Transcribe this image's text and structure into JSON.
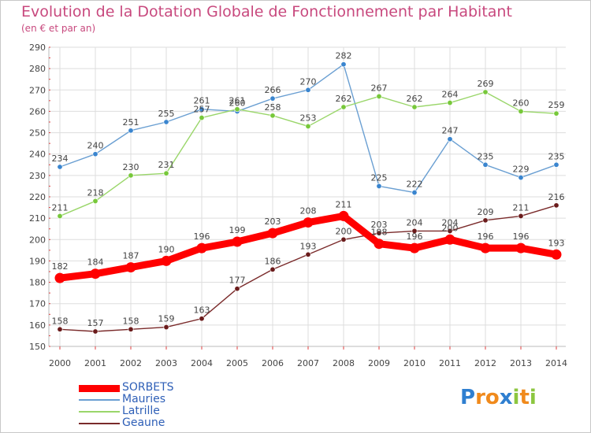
{
  "header": {
    "title": "Evolution de la Dotation Globale de Fonctionnement par Habitant",
    "subtitle": "(en € et par an)"
  },
  "colors": {
    "title": "#c8497e",
    "grid": "#dddddd",
    "axis": "#bbbbbb",
    "axis_red_ticks": "#e04040",
    "legend_text": "#2e5fb7"
  },
  "chart_data": {
    "type": "line",
    "x": [
      "2000",
      "2001",
      "2002",
      "2003",
      "2004",
      "2005",
      "2006",
      "2007",
      "2008",
      "2009",
      "2010",
      "2011",
      "2012",
      "2013",
      "2014"
    ],
    "ylim": [
      150,
      290
    ],
    "yticks": [
      150,
      160,
      170,
      180,
      190,
      200,
      210,
      220,
      230,
      240,
      250,
      260,
      270,
      280,
      290
    ],
    "grid": true,
    "legend_position": "bottom-left",
    "series": [
      {
        "name": "SORBETS",
        "color": "#ff0000",
        "dot": "#ff0000",
        "weight": "heavy",
        "values": [
          182,
          184,
          187,
          190,
          196,
          199,
          203,
          208,
          211,
          198,
          196,
          200,
          196,
          196,
          193
        ],
        "labels": [
          "182",
          "184",
          "187",
          "190",
          "196",
          "199",
          "203",
          "208",
          "211",
          "198",
          "196",
          "200",
          "196",
          "196",
          "193"
        ]
      },
      {
        "name": "Mauries",
        "color": "#6a9fd2",
        "dot": "#3a85cf",
        "weight": "thin",
        "values": [
          234,
          240,
          251,
          255,
          261,
          260,
          266,
          270,
          282,
          225,
          222,
          247,
          235,
          229,
          235
        ],
        "labels": [
          "234",
          "240",
          "251",
          "255",
          "261",
          "260",
          "266",
          "270",
          "282",
          "225",
          "222",
          "247",
          "235",
          "229",
          "235"
        ]
      },
      {
        "name": "Latrille",
        "color": "#9ad66a",
        "dot": "#77c83a",
        "weight": "thin",
        "values": [
          211,
          218,
          230,
          231,
          257,
          261,
          258,
          253,
          262,
          267,
          262,
          264,
          269,
          260,
          259
        ],
        "labels": [
          "211",
          "218",
          "230",
          "231",
          "257",
          "261",
          "258",
          "253",
          "262",
          "267",
          "262",
          "264",
          "269",
          "260",
          "259"
        ]
      },
      {
        "name": "Geaune",
        "color": "#7a2a2a",
        "dot": "#6a1b1b",
        "weight": "thin",
        "values": [
          158,
          157,
          158,
          159,
          163,
          177,
          186,
          193,
          200,
          203,
          204,
          204,
          209,
          211,
          216
        ],
        "labels": [
          "158",
          "157",
          "158",
          "159",
          "163",
          "177",
          "186",
          "193",
          "200",
          "203",
          "204",
          "204",
          "209",
          "211",
          "216"
        ]
      }
    ]
  },
  "logo": {
    "letters": [
      {
        "ch": "P",
        "color": "#2f7fd0"
      },
      {
        "ch": "r",
        "color": "#f08a1c"
      },
      {
        "ch": "o",
        "color": "#f08a1c"
      },
      {
        "ch": "x",
        "color": "#2f7fd0"
      },
      {
        "ch": "i",
        "color": "#8cc63f"
      },
      {
        "ch": "t",
        "color": "#f08a1c"
      },
      {
        "ch": "i",
        "color": "#8cc63f"
      }
    ]
  }
}
